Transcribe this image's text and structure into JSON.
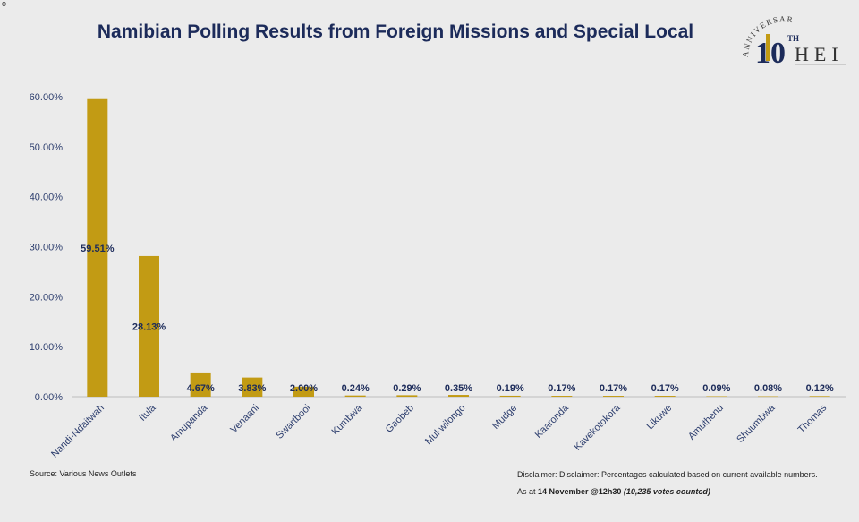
{
  "corner_mark": "o",
  "logo": {
    "arc_text": "ANNIVERSARY",
    "number": "10",
    "superscript": "TH",
    "name": "HEI"
  },
  "colors": {
    "bar": "#c29b14",
    "title": "#1c2b5a",
    "label": "#1c2b5a",
    "axis_text": "#2d3e6e",
    "background": "#ebebeb"
  },
  "footer": {
    "source": "Source: Various News Outlets",
    "disclaimer": "Disclaimer: Disclaimer: Percentages calculated based on current available numbers.",
    "asat_prefix": "As at ",
    "asat_date": "14 November @12h30",
    "asat_votes": "(10,235 votes counted)"
  },
  "chart_data": {
    "type": "bar",
    "title": "Namibian Polling Results from Foreign Missions and Special Local",
    "xlabel": "",
    "ylabel": "",
    "ylim": [
      0,
      60
    ],
    "yticks": [
      "0.00%",
      "10.00%",
      "20.00%",
      "30.00%",
      "40.00%",
      "50.00%",
      "60.00%"
    ],
    "grid": false,
    "legend": "none",
    "categories": [
      "Nandi-Ndaitwah",
      "Itula",
      "Amupanda",
      "Venaani",
      "Swartbooi",
      "Kumbwa",
      "Gaobeb",
      "Mukwilongo",
      "Mudge",
      "Kaaronda",
      "Kavekotokora",
      "Likuwe",
      "Amuthenu",
      "Shuumbwa",
      "Thomas"
    ],
    "values": [
      59.51,
      28.13,
      4.67,
      3.83,
      2.0,
      0.24,
      0.29,
      0.35,
      0.19,
      0.17,
      0.17,
      0.17,
      0.09,
      0.08,
      0.12
    ],
    "data_labels": [
      "59.51%",
      "28.13%",
      "4.67%",
      "3.83%",
      "2.00%",
      "0.24%",
      "0.29%",
      "0.35%",
      "0.19%",
      "0.17%",
      "0.17%",
      "0.17%",
      "0.09%",
      "0.08%",
      "0.12%"
    ]
  }
}
